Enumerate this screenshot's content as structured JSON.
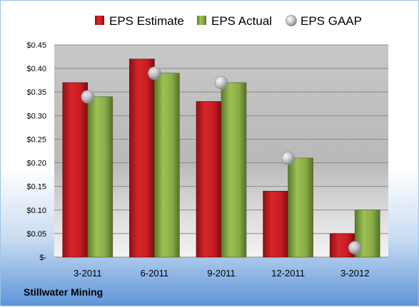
{
  "company": "Stillwater Mining",
  "colors": {
    "estimate": "#cc1f24",
    "actual": "#8db34a",
    "gaap": "#c0c4c9"
  },
  "chart_data": {
    "type": "bar",
    "categories": [
      "3-2011",
      "6-2011",
      "9-2011",
      "12-2011",
      "3-2012"
    ],
    "series": [
      {
        "name": "EPS Estimate",
        "type": "bar",
        "values": [
          0.37,
          0.42,
          0.33,
          0.14,
          0.05
        ]
      },
      {
        "name": "EPS Actual",
        "type": "bar",
        "values": [
          0.34,
          0.39,
          0.37,
          0.21,
          0.1
        ]
      },
      {
        "name": "EPS GAAP",
        "type": "marker",
        "values": [
          0.34,
          0.39,
          0.37,
          0.21,
          0.02
        ]
      }
    ],
    "ylim": [
      0,
      0.45
    ],
    "yticks": [
      0,
      0.05,
      0.1,
      0.15,
      0.2,
      0.25,
      0.3,
      0.35,
      0.4,
      0.45
    ],
    "ytick_labels": [
      "$-",
      "$0.05",
      "$0.10",
      "$0.15",
      "$0.20",
      "$0.25",
      "$0.30",
      "$0.35",
      "$0.40",
      "$0.45"
    ],
    "legend": "top",
    "grid": true
  }
}
